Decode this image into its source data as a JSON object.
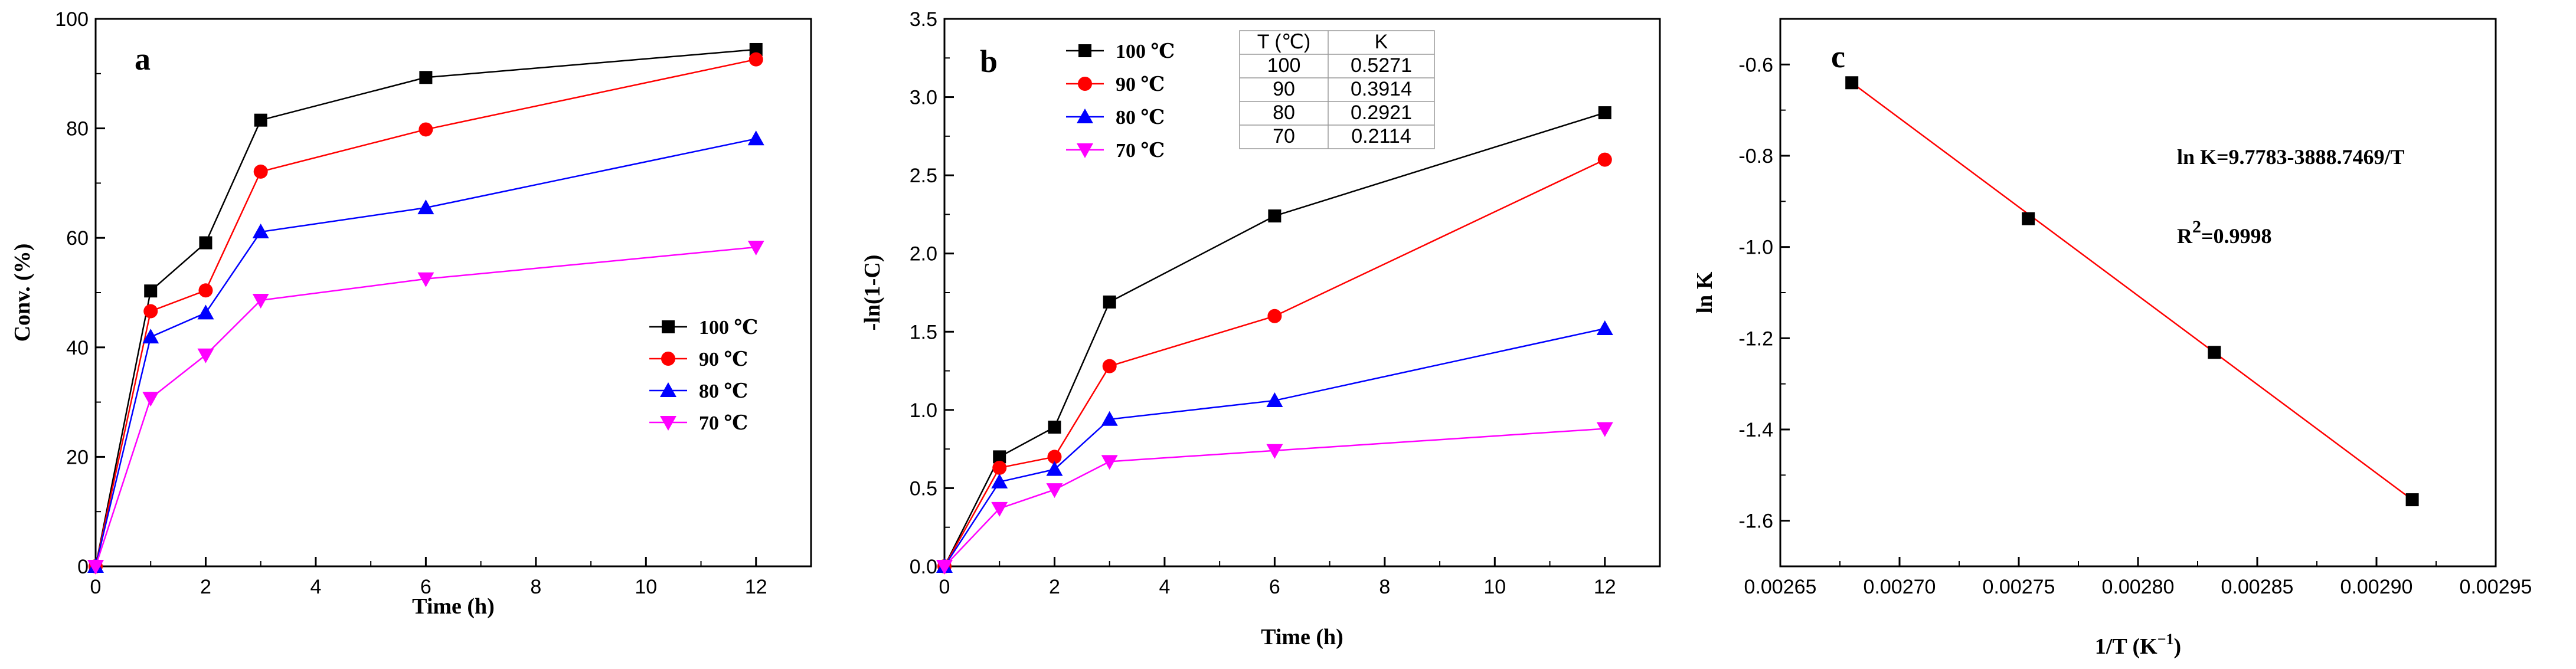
{
  "colors": {
    "s100": "#000000",
    "s90": "#ff0000",
    "s80": "#0000ff",
    "s70": "#ff00ff",
    "fit": "#ff0000"
  },
  "chart_data": [
    {
      "panel": "a",
      "type": "line",
      "xlabel": "Time (h)",
      "ylabel": "Conv. (%)",
      "xlim": [
        0,
        13
      ],
      "ylim": [
        0,
        100
      ],
      "xticks": [
        0,
        2,
        4,
        6,
        8,
        10,
        12
      ],
      "yticks": [
        0,
        20,
        40,
        60,
        80,
        100
      ],
      "x": [
        0,
        1,
        2,
        3,
        6,
        12
      ],
      "legend_position": "center-right",
      "series": [
        {
          "name": "100 ℃",
          "marker": "square",
          "color": "#000000",
          "values": [
            0,
            50.3,
            59.1,
            81.5,
            89.3,
            94.4
          ]
        },
        {
          "name": "90 ℃",
          "marker": "circle",
          "color": "#ff0000",
          "values": [
            0,
            46.6,
            50.4,
            72.1,
            79.8,
            92.6
          ]
        },
        {
          "name": "80 ℃",
          "marker": "triangle-up",
          "color": "#0000ff",
          "values": [
            0,
            41.9,
            46.3,
            61.1,
            65.5,
            78.1
          ]
        },
        {
          "name": "70 ℃",
          "marker": "triangle-down",
          "color": "#ff00ff",
          "values": [
            0,
            30.7,
            38.6,
            48.6,
            52.5,
            58.3
          ]
        }
      ]
    },
    {
      "panel": "b",
      "type": "line",
      "xlabel": "Time (h)",
      "ylabel": "-ln(1-C)",
      "xlim": [
        0,
        13
      ],
      "ylim": [
        0,
        3.5
      ],
      "xticks": [
        0,
        2,
        4,
        6,
        8,
        10,
        12
      ],
      "yticks": [
        "0.0",
        "0.5",
        "1.0",
        "1.5",
        "2.0",
        "2.5",
        "3.0",
        "3.5"
      ],
      "x": [
        0,
        1,
        2,
        3,
        6,
        12
      ],
      "legend_position": "top-left",
      "series": [
        {
          "name": "100 ℃",
          "marker": "square",
          "color": "#000000",
          "values": [
            0,
            0.7,
            0.89,
            1.69,
            2.24,
            2.9
          ]
        },
        {
          "name": "90 ℃",
          "marker": "circle",
          "color": "#ff0000",
          "values": [
            0,
            0.63,
            0.7,
            1.28,
            1.6,
            2.6
          ]
        },
        {
          "name": "80 ℃",
          "marker": "triangle-up",
          "color": "#0000ff",
          "values": [
            0,
            0.54,
            0.62,
            0.94,
            1.06,
            1.52
          ]
        },
        {
          "name": "70 ℃",
          "marker": "triangle-down",
          "color": "#ff00ff",
          "values": [
            0,
            0.37,
            0.49,
            0.67,
            0.74,
            0.88
          ]
        }
      ],
      "table": {
        "headers": [
          "T (℃)",
          "K"
        ],
        "rows": [
          [
            "100",
            "0.5271"
          ],
          [
            "90",
            "0.3914"
          ],
          [
            "80",
            "0.2921"
          ],
          [
            "70",
            "0.2114"
          ]
        ]
      }
    },
    {
      "panel": "c",
      "type": "scatter",
      "xlabel": "1/T (K",
      "xlabel_sup": "−1",
      "xlabel_end": ")",
      "ylabel": "ln K",
      "xlim": [
        0.00265,
        0.00295
      ],
      "ylim": [
        -1.7,
        -0.5
      ],
      "xticks": [
        "0.00265",
        "0.00270",
        "0.00275",
        "0.00280",
        "0.00285",
        "0.00290",
        "0.00295"
      ],
      "yticks": [
        "-1.6",
        "-1.4",
        "-1.2",
        "-1.0",
        "-0.8",
        "-0.6"
      ],
      "points": {
        "x": [
          0.00268,
          0.002754,
          0.002832,
          0.002915
        ],
        "y": [
          -0.64,
          -0.938,
          -1.231,
          -1.554
        ]
      },
      "fit_line": {
        "x": [
          0.00268,
          0.002915
        ],
        "y": [
          -0.64,
          -1.554
        ]
      },
      "annotation_equation": "ln K=9.7783-3888.7469/T",
      "annotation_r2_base": "R",
      "annotation_r2_sup": "2",
      "annotation_r2_value": "=0.9998"
    }
  ]
}
